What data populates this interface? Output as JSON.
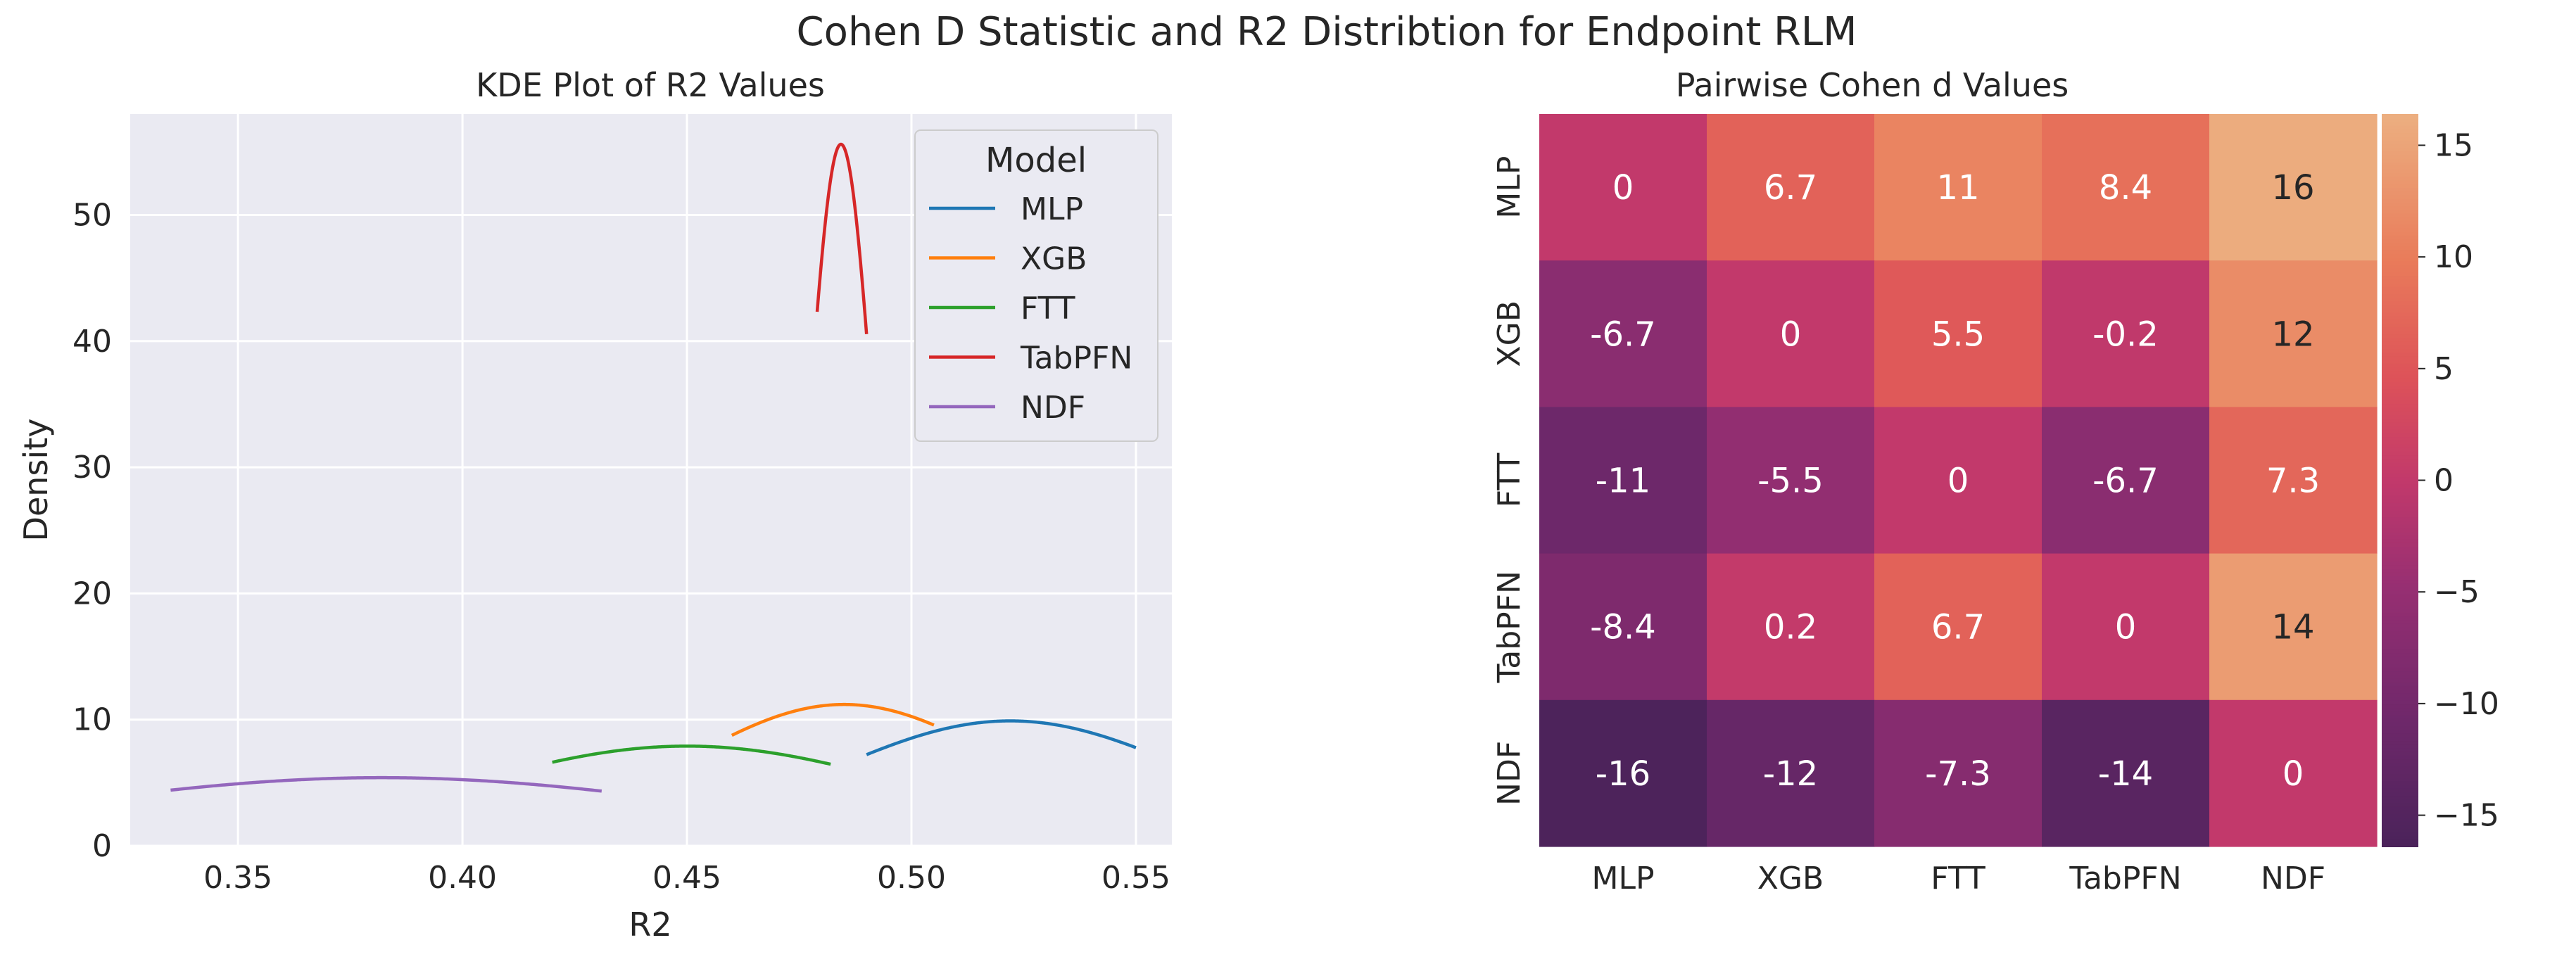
{
  "suptitle": "Cohen D Statistic and R2 Distribtion for Endpoint RLM",
  "chart_data": [
    {
      "type": "line",
      "subtype": "kde",
      "title": "KDE Plot of R2 Values",
      "xlabel": "R2",
      "ylabel": "Density",
      "xlim": [
        0.326,
        0.558
      ],
      "ylim": [
        0,
        58
      ],
      "xticks": [
        "0.35",
        "0.40",
        "0.45",
        "0.50",
        "0.55"
      ],
      "yticks": [
        "0",
        "10",
        "20",
        "30",
        "40",
        "50"
      ],
      "grid": true,
      "legend": {
        "title": "Model",
        "position": "top-right"
      },
      "series": [
        {
          "name": "MLP",
          "color": "#1f77b4",
          "mean": 0.522,
          "peak": 9.9,
          "xmin": 0.49,
          "xmax": 0.55
        },
        {
          "name": "XGB",
          "color": "#ff7f0e",
          "mean": 0.485,
          "peak": 11.2,
          "xmin": 0.46,
          "xmax": 0.505
        },
        {
          "name": "FTT",
          "color": "#2ca02c",
          "mean": 0.45,
          "peak": 7.9,
          "xmin": 0.42,
          "xmax": 0.482
        },
        {
          "name": "TabPFN",
          "color": "#d62728",
          "mean": 0.4843,
          "peak": 55.6,
          "xmin": 0.479,
          "xmax": 0.49
        },
        {
          "name": "NDF",
          "color": "#9467bd",
          "mean": 0.382,
          "peak": 5.4,
          "xmin": 0.335,
          "xmax": 0.431
        }
      ]
    },
    {
      "type": "heatmap",
      "title": "Pairwise Cohen d Values",
      "rows": [
        "MLP",
        "XGB",
        "FTT",
        "TabPFN",
        "NDF"
      ],
      "cols": [
        "MLP",
        "XGB",
        "FTT",
        "TabPFN",
        "NDF"
      ],
      "values": [
        [
          0,
          6.7,
          11,
          8.4,
          16
        ],
        [
          -6.7,
          0,
          5.5,
          -0.2,
          12
        ],
        [
          -11,
          -5.5,
          0,
          -6.7,
          7.3
        ],
        [
          -8.4,
          0.2,
          6.7,
          0,
          14
        ],
        [
          -16,
          -12,
          -7.3,
          -14,
          0
        ]
      ],
      "vmin": -16.4,
      "vmax": 16.4,
      "colormap": "flare",
      "colorbar_ticks": [
        "−15",
        "−10",
        "−5",
        "0",
        "5",
        "10",
        "15"
      ]
    }
  ]
}
